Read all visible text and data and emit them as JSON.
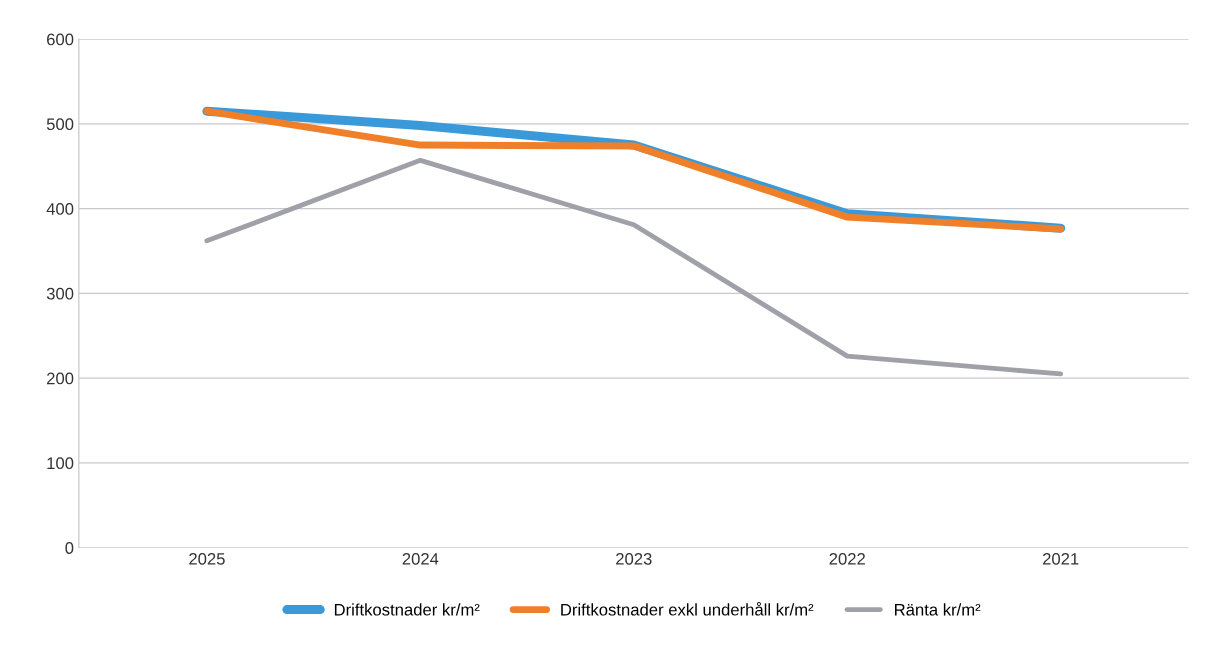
{
  "chart_data": {
    "type": "line",
    "categories": [
      "2025",
      "2024",
      "2023",
      "2022",
      "2021"
    ],
    "series": [
      {
        "name": "Driftkostnader kr/m²",
        "color": "#3a9ad9",
        "values": [
          515,
          498,
          475,
          394,
          377
        ]
      },
      {
        "name": "Driftkostnader exkl underhåll kr/m²",
        "color": "#f07f2a",
        "values": [
          515,
          475,
          474,
          390,
          376
        ]
      },
      {
        "name": "Ränta kr/m²",
        "color": "#a0a0a8",
        "values": [
          362,
          457,
          381,
          226,
          205
        ]
      }
    ],
    "ylim": [
      0,
      600
    ],
    "yticks": [
      0,
      100,
      200,
      300,
      400,
      500,
      600
    ],
    "grid": "y",
    "legend": "bottom",
    "marker": "none",
    "line_style": "solid"
  }
}
